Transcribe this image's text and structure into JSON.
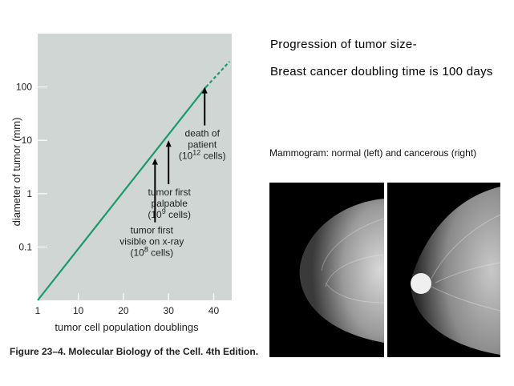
{
  "chart_data": {
    "type": "line",
    "xlabel": "tumor cell population doublings",
    "ylabel": "diameter of tumor (mm)",
    "xlim": [
      1,
      44
    ],
    "ylim": [
      0.01,
      1000
    ],
    "y_scale": "log",
    "x_ticks": [
      "1",
      "10",
      "20",
      "30",
      "40"
    ],
    "x_tick_values": [
      1,
      10,
      20,
      30,
      40
    ],
    "y_ticks": [
      "0.1",
      "1",
      "10",
      "100"
    ],
    "y_tick_values": [
      0.1,
      1,
      10,
      100
    ],
    "series": [
      {
        "x": [
          1,
          38.3
        ],
        "y": [
          0.01,
          100
        ],
        "color": "#1a9a6a"
      }
    ],
    "extension_dashed": {
      "x": [
        38.3,
        43.5
      ],
      "y": [
        100,
        300
      ]
    },
    "annotations": [
      {
        "lines": [
          "death of",
          "patient",
          "(10^12 cells)"
        ],
        "arrow_x": 38,
        "arrow_tip_y": 100,
        "arrow_base_y": 19
      },
      {
        "lines": [
          "tumor first",
          "palpable",
          "(10^9 cells)"
        ],
        "arrow_x": 30,
        "arrow_tip_y": 10,
        "arrow_base_y": 1.5
      },
      {
        "lines": [
          "tumor first",
          "visible on x-ray",
          "(10^8 cells)"
        ],
        "arrow_x": 27,
        "arrow_tip_y": 4.6,
        "arrow_base_y": 0.29
      }
    ],
    "plot_background": "#cfd6d3",
    "caption": "Figure 23–4. Molecular Biology of the Cell. 4th Edition."
  },
  "slide": {
    "title_line1": "Progression of tumor size-",
    "title_line2": "Breast cancer doubling time is 100 days",
    "mammogram_caption": "Mammogram: normal (left) and cancerous (right)"
  }
}
